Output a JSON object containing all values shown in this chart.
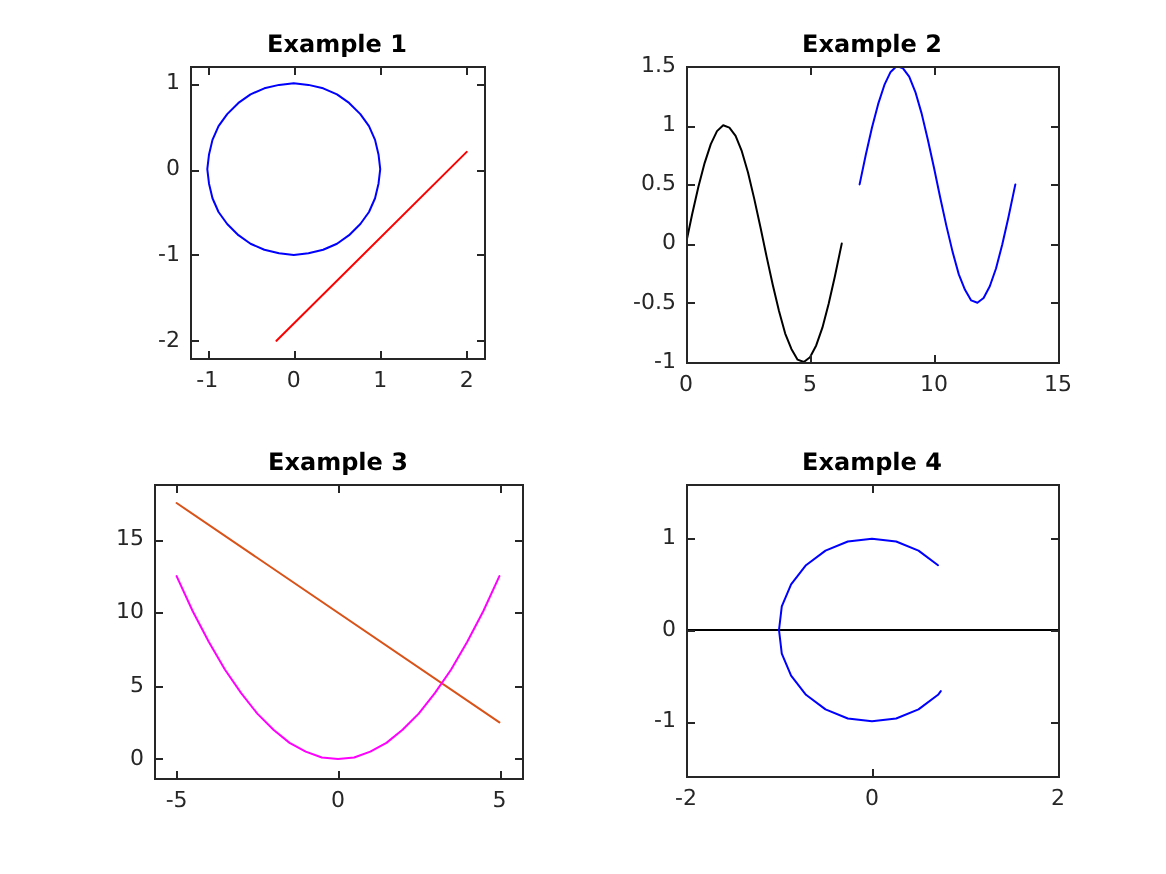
{
  "chart_data": [
    {
      "type": "line",
      "title": "Example 1",
      "series": [
        {
          "color": "#0000ff",
          "x": [
            1,
            0.98,
            0.94,
            0.87,
            0.77,
            0.64,
            0.5,
            0.34,
            0.17,
            0,
            -0.17,
            -0.34,
            -0.5,
            -0.64,
            -0.77,
            -0.87,
            -0.94,
            -0.98,
            -1,
            -0.98,
            -0.94,
            -0.87,
            -0.77,
            -0.64,
            -0.5,
            -0.34,
            -0.17,
            0,
            0.17,
            0.34,
            0.5,
            0.64,
            0.77,
            0.87,
            0.94,
            0.98,
            1,
            0.98
          ],
          "values": [
            0,
            0.17,
            0.34,
            0.5,
            0.64,
            0.77,
            0.87,
            0.94,
            0.98,
            1,
            0.98,
            0.94,
            0.87,
            0.77,
            0.64,
            0.5,
            0.34,
            0.17,
            0,
            -0.17,
            -0.34,
            -0.5,
            -0.64,
            -0.77,
            -0.87,
            -0.94,
            -0.98,
            -1,
            -0.98,
            -0.94,
            -0.87,
            -0.77,
            -0.64,
            -0.5,
            -0.34,
            -0.17,
            0,
            0.17
          ]
        },
        {
          "color": "#ff0000",
          "x": [
            -0.2,
            2
          ],
          "values": [
            -2,
            0.2
          ]
        }
      ],
      "xlim": [
        -1.2,
        2.2
      ],
      "ylim": [
        -2.2,
        1.2
      ],
      "xticks": [
        -1,
        0,
        1,
        2
      ],
      "yticks": [
        -2,
        -1,
        0,
        1
      ]
    },
    {
      "type": "line",
      "title": "Example 2",
      "series": [
        {
          "color": "#000000",
          "x": [
            0,
            0.25,
            0.5,
            0.75,
            1,
            1.25,
            1.5,
            1.75,
            2,
            2.25,
            2.5,
            2.75,
            3,
            3.25,
            3.5,
            3.75,
            4,
            4.25,
            4.5,
            4.75,
            5,
            5.25,
            5.5,
            5.75,
            6,
            6.28
          ],
          "values": [
            0,
            0.25,
            0.48,
            0.68,
            0.84,
            0.95,
            1,
            0.98,
            0.91,
            0.78,
            0.6,
            0.38,
            0.14,
            -0.11,
            -0.35,
            -0.57,
            -0.76,
            -0.89,
            -0.98,
            -1,
            -0.96,
            -0.86,
            -0.71,
            -0.51,
            -0.28,
            0
          ]
        },
        {
          "color": "#0000ff",
          "x": [
            7,
            7.25,
            7.5,
            7.75,
            8,
            8.25,
            8.5,
            8.75,
            9,
            9.25,
            9.5,
            9.75,
            10,
            10.25,
            10.5,
            10.75,
            11,
            11.25,
            11.5,
            11.75,
            12,
            12.25,
            12.5,
            12.75,
            13,
            13.28
          ],
          "values": [
            0.5,
            0.75,
            0.98,
            1.18,
            1.34,
            1.45,
            1.5,
            1.48,
            1.41,
            1.28,
            1.1,
            0.88,
            0.64,
            0.39,
            0.15,
            -0.07,
            -0.26,
            -0.39,
            -0.48,
            -0.5,
            -0.46,
            -0.36,
            -0.21,
            -0.01,
            0.22,
            0.5
          ]
        }
      ],
      "xlim": [
        0,
        15
      ],
      "ylim": [
        -1,
        1.5
      ],
      "xticks": [
        0,
        5,
        10,
        15
      ],
      "yticks": [
        -1,
        -0.5,
        0,
        0.5,
        1,
        1.5
      ]
    },
    {
      "type": "line",
      "title": "Example 3",
      "series": [
        {
          "color": "#ff00ff",
          "x": [
            -5,
            -4.5,
            -4,
            -3.5,
            -3,
            -2.5,
            -2,
            -1.5,
            -1,
            -0.5,
            0,
            0.5,
            1,
            1.5,
            2,
            2.5,
            3,
            3.5,
            4,
            4.5,
            5
          ],
          "values": [
            12.5,
            10.1,
            8,
            6.1,
            4.5,
            3.1,
            2,
            1.1,
            0.5,
            0.1,
            0,
            0.1,
            0.5,
            1.1,
            2,
            3.1,
            4.5,
            6.1,
            8,
            10.1,
            12.5
          ]
        },
        {
          "color": "#d95319",
          "x": [
            -5,
            5
          ],
          "values": [
            17.5,
            2.5
          ]
        }
      ],
      "xlim": [
        -5.7,
        5.7
      ],
      "ylim": [
        -1.3,
        18.8
      ],
      "xticks": [
        -5,
        0,
        5
      ],
      "yticks": [
        0,
        5,
        10,
        15
      ]
    },
    {
      "type": "line",
      "title": "Example 4",
      "series": [
        {
          "color": "#0000ff",
          "x": [
            0.71,
            0.5,
            0.26,
            0,
            -0.26,
            -0.5,
            -0.71,
            -0.87,
            -0.97,
            -1,
            -0.97,
            -0.87,
            -0.71,
            -0.5,
            -0.26,
            0,
            0.26,
            0.5,
            0.71,
            0.74
          ],
          "values": [
            0.71,
            0.87,
            0.97,
            1,
            0.97,
            0.87,
            0.71,
            0.5,
            0.26,
            0,
            -0.26,
            -0.5,
            -0.71,
            -0.87,
            -0.97,
            -1,
            -0.97,
            -0.87,
            -0.71,
            -0.67
          ]
        },
        {
          "color": "#000000",
          "x": [
            -2,
            2
          ],
          "values": [
            0,
            0
          ]
        }
      ],
      "xlim": [
        -2,
        2
      ],
      "ylim": [
        -1.6,
        1.6
      ],
      "xticks": [
        -2,
        0,
        2
      ],
      "yticks": [
        -1,
        0,
        1
      ]
    }
  ]
}
